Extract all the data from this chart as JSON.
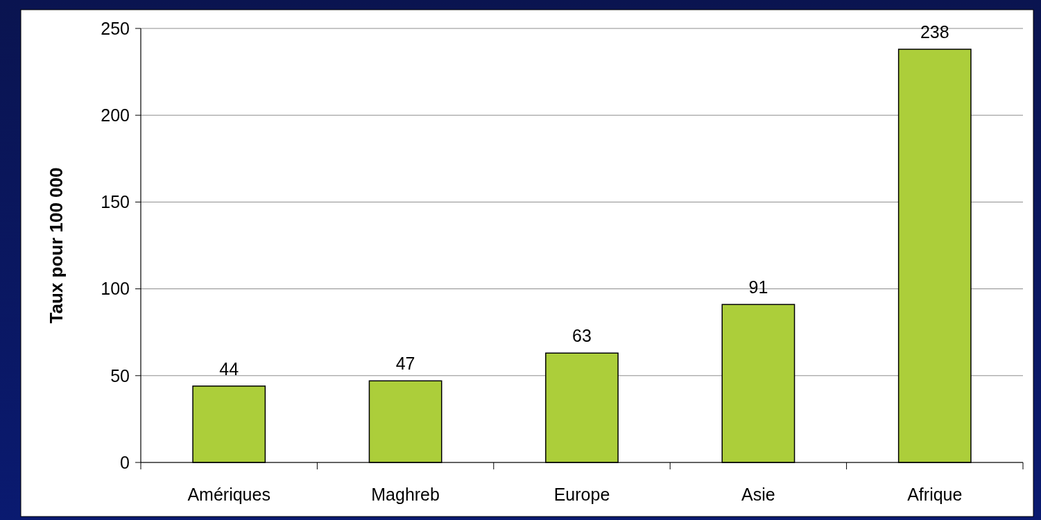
{
  "chart_data": {
    "type": "bar",
    "ylabel": "Taux pour 100 000",
    "categories": [
      "Amériques",
      "Maghreb",
      "Europe",
      "Asie",
      "Afrique"
    ],
    "values": [
      44,
      47,
      63,
      91,
      238
    ],
    "color": "#acce3a",
    "ylim": [
      0,
      250
    ],
    "yticks": [
      0,
      50,
      100,
      150,
      200,
      250
    ],
    "grid": "y",
    "data_labels": true
  }
}
